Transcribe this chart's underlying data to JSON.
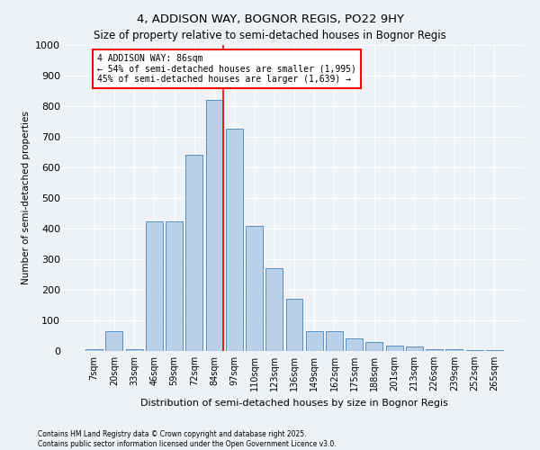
{
  "title1": "4, ADDISON WAY, BOGNOR REGIS, PO22 9HY",
  "title2": "Size of property relative to semi-detached houses in Bognor Regis",
  "xlabel": "Distribution of semi-detached houses by size in Bognor Regis",
  "ylabel": "Number of semi-detached properties",
  "categories": [
    "7sqm",
    "20sqm",
    "33sqm",
    "46sqm",
    "59sqm",
    "72sqm",
    "84sqm",
    "97sqm",
    "110sqm",
    "123sqm",
    "136sqm",
    "149sqm",
    "162sqm",
    "175sqm",
    "188sqm",
    "201sqm",
    "213sqm",
    "226sqm",
    "239sqm",
    "252sqm",
    "265sqm"
  ],
  "bar_values": [
    5,
    65,
    5,
    425,
    425,
    640,
    820,
    725,
    410,
    270,
    170,
    65,
    65,
    40,
    30,
    18,
    15,
    7,
    5,
    3,
    2
  ],
  "bar_color": "#b8d0e8",
  "bar_edge_color": "#5a8fbf",
  "vline_color": "red",
  "vline_pos": 6.43,
  "annotation_title": "4 ADDISON WAY: 86sqm",
  "annotation_line1": "← 54% of semi-detached houses are smaller (1,995)",
  "annotation_line2": "45% of semi-detached houses are larger (1,639) →",
  "ylim": [
    0,
    1000
  ],
  "yticks": [
    0,
    100,
    200,
    300,
    400,
    500,
    600,
    700,
    800,
    900,
    1000
  ],
  "footer1": "Contains HM Land Registry data © Crown copyright and database right 2025.",
  "footer2": "Contains public sector information licensed under the Open Government Licence v3.0.",
  "bg_color": "#eef2f7"
}
